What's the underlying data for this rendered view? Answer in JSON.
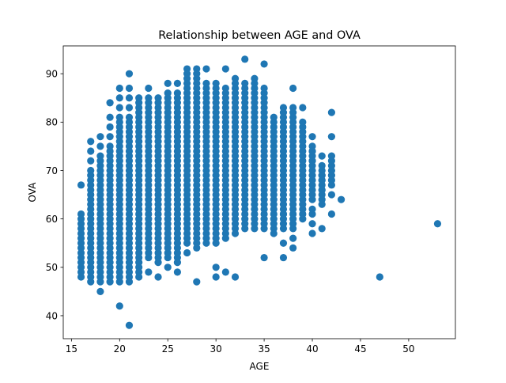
{
  "chart_data": {
    "type": "scatter",
    "title": "Relationship between AGE and OVA",
    "xlabel": "AGE",
    "ylabel": "OVA",
    "xlim": [
      14.15,
      54.85
    ],
    "ylim": [
      35.25,
      95.75
    ],
    "xticks": [
      15,
      20,
      25,
      30,
      35,
      40,
      45,
      50
    ],
    "yticks": [
      40,
      50,
      60,
      70,
      80,
      90
    ],
    "grid": false,
    "legend": "none",
    "marker_color": "#1f77b4",
    "series": [
      {
        "columns": [
          {
            "x": 16,
            "min": 48,
            "max": 61
          },
          {
            "x": 17,
            "min": 47,
            "max": 69
          },
          {
            "x": 18,
            "min": 47,
            "max": 73
          },
          {
            "x": 19,
            "min": 47,
            "max": 75
          },
          {
            "x": 20,
            "min": 47,
            "max": 81
          },
          {
            "x": 21,
            "min": 47,
            "max": 81
          },
          {
            "x": 22,
            "min": 48,
            "max": 85
          },
          {
            "x": 23,
            "min": 52,
            "max": 85
          },
          {
            "x": 24,
            "min": 51,
            "max": 85
          },
          {
            "x": 25,
            "min": 52,
            "max": 86
          },
          {
            "x": 26,
            "min": 51,
            "max": 86
          },
          {
            "x": 27,
            "min": 55,
            "max": 89
          },
          {
            "x": 28,
            "min": 54,
            "max": 89
          },
          {
            "x": 29,
            "min": 55,
            "max": 88
          },
          {
            "x": 30,
            "min": 55,
            "max": 88
          },
          {
            "x": 31,
            "min": 56,
            "max": 87
          },
          {
            "x": 32,
            "min": 58,
            "max": 88
          },
          {
            "x": 33,
            "min": 58,
            "max": 87
          },
          {
            "x": 34,
            "min": 58,
            "max": 87
          },
          {
            "x": 35,
            "min": 58,
            "max": 86
          },
          {
            "x": 36,
            "min": 58,
            "max": 81
          },
          {
            "x": 37,
            "min": 58,
            "max": 83
          },
          {
            "x": 38,
            "min": 59,
            "max": 83
          },
          {
            "x": 39,
            "min": 62,
            "max": 80
          },
          {
            "x": 40,
            "min": 64,
            "max": 75
          },
          {
            "x": 41,
            "min": 64,
            "max": 71
          },
          {
            "x": 42,
            "min": 68,
            "max": 72
          }
        ],
        "points": [
          [
            16,
            67
          ],
          [
            17,
            76
          ],
          [
            17,
            74
          ],
          [
            17,
            72
          ],
          [
            17,
            70
          ],
          [
            18,
            77
          ],
          [
            18,
            75
          ],
          [
            18,
            45
          ],
          [
            19,
            84
          ],
          [
            19,
            81
          ],
          [
            19,
            79
          ],
          [
            19,
            77
          ],
          [
            20,
            87
          ],
          [
            20,
            85
          ],
          [
            20,
            83
          ],
          [
            20,
            42
          ],
          [
            21,
            90
          ],
          [
            21,
            87
          ],
          [
            21,
            85
          ],
          [
            21,
            83
          ],
          [
            21,
            38
          ],
          [
            23,
            87
          ],
          [
            23,
            49
          ],
          [
            24,
            48
          ],
          [
            25,
            88
          ],
          [
            25,
            50
          ],
          [
            26,
            88
          ],
          [
            26,
            49
          ],
          [
            27,
            91
          ],
          [
            27,
            90
          ],
          [
            27,
            53
          ],
          [
            28,
            91
          ],
          [
            28,
            90
          ],
          [
            28,
            47
          ],
          [
            29,
            91
          ],
          [
            30,
            50
          ],
          [
            30,
            48
          ],
          [
            31,
            91
          ],
          [
            31,
            49
          ],
          [
            32,
            89
          ],
          [
            32,
            57
          ],
          [
            32,
            48
          ],
          [
            33,
            93
          ],
          [
            33,
            88
          ],
          [
            34,
            89
          ],
          [
            34,
            88
          ],
          [
            35,
            92
          ],
          [
            35,
            87
          ],
          [
            35,
            52
          ],
          [
            36,
            57
          ],
          [
            37,
            61
          ],
          [
            37,
            55
          ],
          [
            37,
            52
          ],
          [
            38,
            87
          ],
          [
            38,
            58
          ],
          [
            38,
            56
          ],
          [
            38,
            54
          ],
          [
            39,
            83
          ],
          [
            39,
            61
          ],
          [
            39,
            60
          ],
          [
            40,
            77
          ],
          [
            40,
            74
          ],
          [
            40,
            72
          ],
          [
            40,
            62
          ],
          [
            40,
            61
          ],
          [
            40,
            59
          ],
          [
            40,
            57
          ],
          [
            41,
            73
          ],
          [
            41,
            69
          ],
          [
            41,
            68
          ],
          [
            41,
            66
          ],
          [
            41,
            63
          ],
          [
            41,
            58
          ],
          [
            42,
            82
          ],
          [
            42,
            77
          ],
          [
            42,
            73
          ],
          [
            42,
            67
          ],
          [
            42,
            65
          ],
          [
            42,
            61
          ],
          [
            43,
            64
          ],
          [
            47,
            48
          ],
          [
            53,
            59
          ]
        ]
      }
    ]
  }
}
